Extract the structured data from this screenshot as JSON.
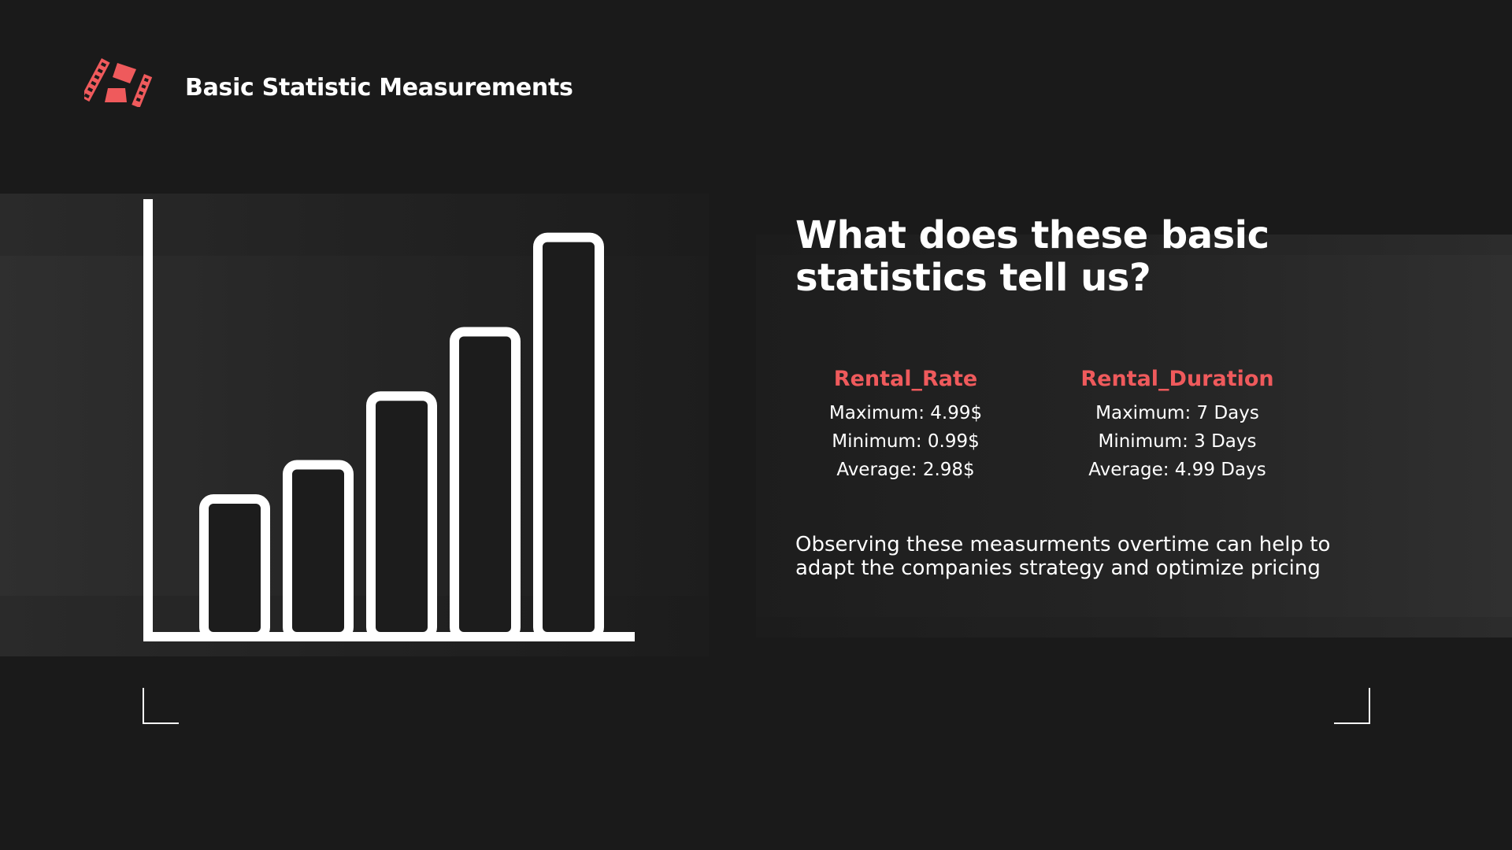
{
  "header": {
    "title": "Basic Statistic Measurements",
    "logo_icon": "film-strip-logo-icon",
    "accent_color": "#ef5a5c"
  },
  "illustration": {
    "icon": "bar-chart-icon",
    "bar_levels": [
      0.31,
      0.39,
      0.55,
      0.7,
      0.92
    ]
  },
  "main": {
    "question": "What does these basic statistics tell us?",
    "rental_rate": {
      "heading": "Rental_Rate",
      "maximum": "Maximum: 4.99$",
      "minimum": "Minimum: 0.99$",
      "average": "Average: 2.98$"
    },
    "rental_duration": {
      "heading": "Rental_Duration",
      "maximum": "Maximum: 7 Days",
      "minimum": "Minimum: 3 Days",
      "average": "Average: 4.99 Days"
    },
    "observation": "Observing these measurments overtime can help to adapt the companies strategy and optimize pricing"
  },
  "colors": {
    "background": "#1a1a1a",
    "text": "#ffffff",
    "accent": "#ef5a5c"
  }
}
